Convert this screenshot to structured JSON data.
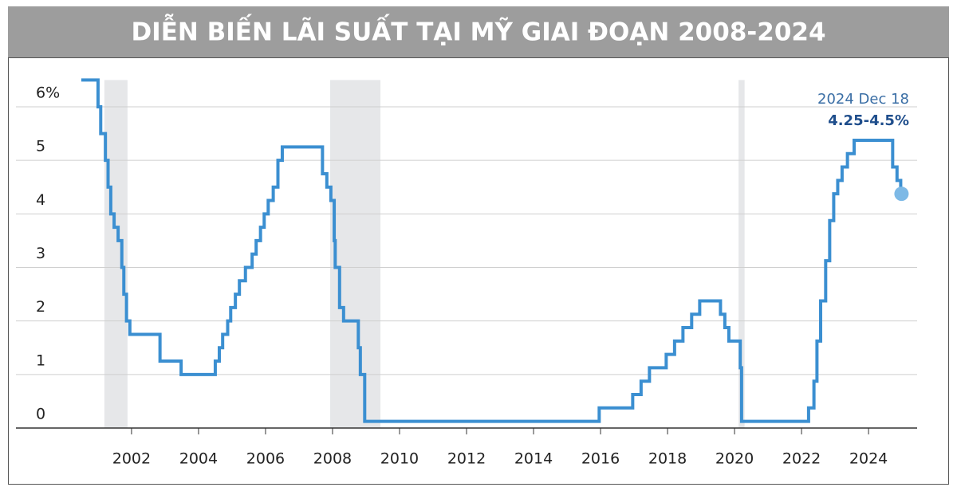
{
  "chart_data": {
    "type": "line",
    "title": "DIỄN BIẾN LÃI SUẤT TẠI MỸ GIAI ĐOẠN 2008-2024",
    "line_shape": "step",
    "x": [
      2000.5,
      2001.0,
      2001.08,
      2001.22,
      2001.3,
      2001.38,
      2001.48,
      2001.6,
      2001.71,
      2001.77,
      2001.85,
      2001.95,
      2002.85,
      2003.48,
      2004.5,
      2004.62,
      2004.72,
      2004.87,
      2004.96,
      2005.1,
      2005.22,
      2005.4,
      2005.6,
      2005.72,
      2005.85,
      2005.96,
      2006.08,
      2006.23,
      2006.37,
      2006.5,
      2007.7,
      2007.83,
      2007.95,
      2008.05,
      2008.08,
      2008.21,
      2008.33,
      2008.77,
      2008.83,
      2008.96,
      2015.96,
      2016.96,
      2017.21,
      2017.46,
      2017.96,
      2018.21,
      2018.46,
      2018.72,
      2018.96,
      2019.58,
      2019.71,
      2019.83,
      2020.17,
      2020.21,
      2022.21,
      2022.37,
      2022.46,
      2022.57,
      2022.72,
      2022.84,
      2022.96,
      2023.08,
      2023.21,
      2023.37,
      2023.57,
      2024.72,
      2024.85,
      2024.96
    ],
    "series": [
      {
        "color": "#3b8fd1",
        "values": [
          6.5,
          6.0,
          5.5,
          5.0,
          4.5,
          4.0,
          3.75,
          3.5,
          3.0,
          2.5,
          2.0,
          1.75,
          1.25,
          1.0,
          1.25,
          1.5,
          1.75,
          2.0,
          2.25,
          2.5,
          2.75,
          3.0,
          3.25,
          3.5,
          3.75,
          4.0,
          4.25,
          4.5,
          5.0,
          5.25,
          4.75,
          4.5,
          4.25,
          3.5,
          3.0,
          2.25,
          2.0,
          1.5,
          1.0,
          0.125,
          0.375,
          0.625,
          0.875,
          1.125,
          1.375,
          1.625,
          1.875,
          2.125,
          2.375,
          2.125,
          1.875,
          1.625,
          1.125,
          0.125,
          0.375,
          0.875,
          1.625,
          2.375,
          3.125,
          3.875,
          4.375,
          4.625,
          4.875,
          5.125,
          5.375,
          4.875,
          4.625,
          4.375
        ]
      }
    ],
    "shaded_periods": [
      [
        2001.19,
        2001.88
      ],
      [
        2007.93,
        2009.43
      ],
      [
        2020.12,
        2020.3
      ]
    ],
    "xlim": [
      1998.55,
      2025.45
    ],
    "xticks": [
      2002,
      2004,
      2006,
      2008,
      2010,
      2012,
      2014,
      2016,
      2018,
      2020,
      2022,
      2024
    ],
    "ylim": [
      0,
      6.5
    ],
    "yticks": [
      0,
      1,
      2,
      3,
      4,
      5,
      {
        "value": 6,
        "label": "6%"
      }
    ],
    "grid": true,
    "annotations": [
      {
        "text": "2024 Dec 18"
      },
      {
        "text": "4.25-4.5%"
      }
    ]
  }
}
